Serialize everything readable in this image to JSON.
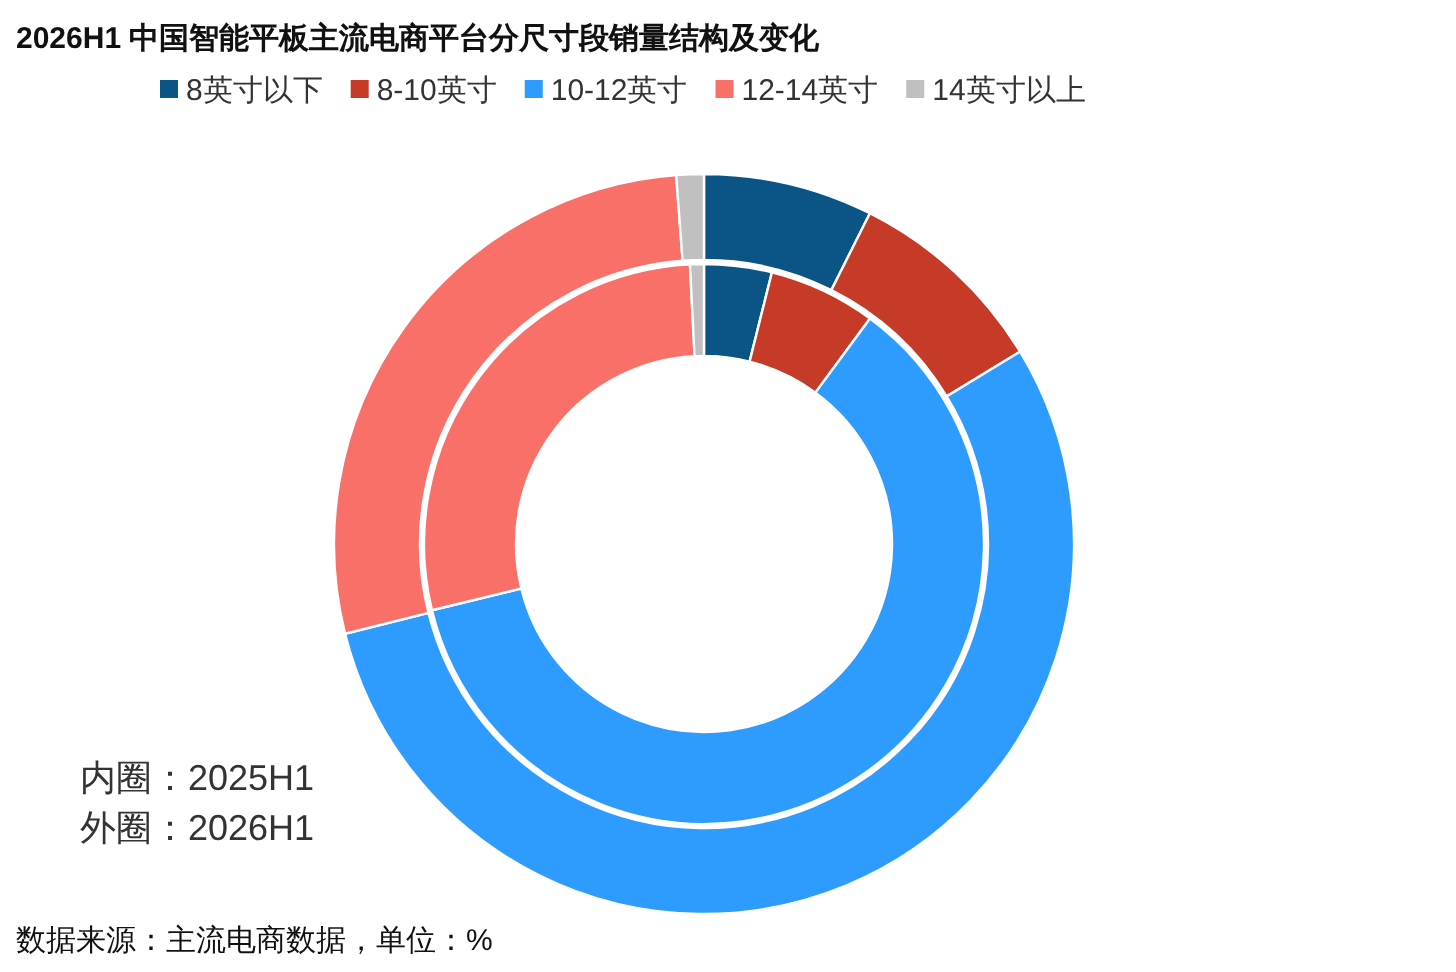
{
  "chart_data": {
    "type": "donut",
    "title": "2026H1 中国智能平板主流电商平台分尺寸段销量结构及变化",
    "categories": [
      "8英寸以下",
      "8-10英寸",
      "10-12英寸",
      "12-14英寸",
      "14英寸以上"
    ],
    "colors": [
      "#0b5586",
      "#c63a28",
      "#2e9cff",
      "#f87068",
      "#c0c0c0"
    ],
    "series": [
      {
        "values": [
          3.9,
          6.2,
          61.1,
          28.0,
          0.8
        ]
      },
      {
        "values": [
          7.4,
          8.9,
          54.8,
          27.7,
          1.2
        ]
      }
    ],
    "legend": "top",
    "annotations": [
      "内圈：2025H1",
      "外圈：2026H1",
      "数据来源：主流电商数据，单位：%"
    ]
  }
}
